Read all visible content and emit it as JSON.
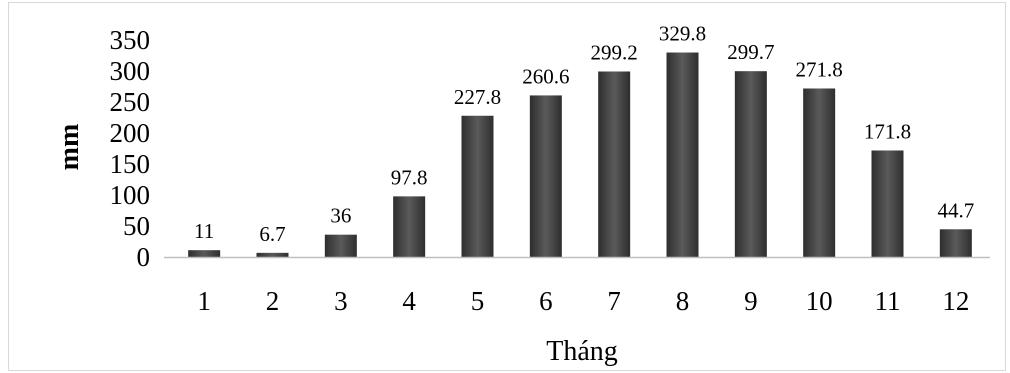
{
  "chart_data": {
    "type": "bar",
    "categories": [
      "1",
      "2",
      "3",
      "4",
      "5",
      "6",
      "7",
      "8",
      "9",
      "10",
      "11",
      "12"
    ],
    "values": [
      11,
      6.7,
      36,
      97.8,
      227.8,
      260.6,
      299.2,
      329.8,
      299.7,
      271.8,
      171.8,
      44.7
    ],
    "data_labels": [
      "11",
      "6.7",
      "36",
      "97.8",
      "227.8",
      "260.6",
      "299.2",
      "329.8",
      "299.7",
      "271.8",
      "171.8",
      "44.7"
    ],
    "title": "",
    "xlabel": "Tháng",
    "ylabel": "mm",
    "ylim": [
      0,
      350
    ],
    "yticks": [
      "0",
      "50",
      "100",
      "150",
      "200",
      "250",
      "300",
      "350"
    ],
    "grid": false,
    "bar_color": "#4a4a4a"
  }
}
